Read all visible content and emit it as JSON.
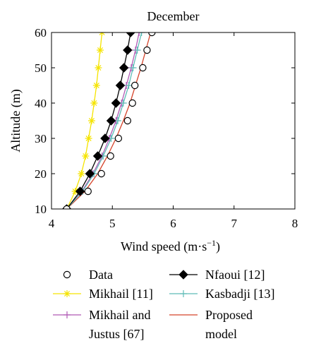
{
  "chart_data": {
    "type": "line",
    "title": "December",
    "xlabel": "Wind speed (m·s",
    "xlabel_sup": "−1",
    "xlabel_close": ")",
    "ylabel": "Altitude (m)",
    "xlim": [
      4,
      8
    ],
    "ylim": [
      10,
      60
    ],
    "xticks": [
      "4",
      "5",
      "6",
      "7",
      "8"
    ],
    "yticks": [
      "10",
      "20",
      "30",
      "40",
      "50",
      "60"
    ],
    "grid": false,
    "legend_position": "bottom",
    "y": [
      10,
      15,
      20,
      25,
      30,
      35,
      40,
      45,
      50,
      55,
      60
    ],
    "series": [
      {
        "name": "Data",
        "marker": "circle",
        "line": false,
        "color": "#000000",
        "x": [
          4.25,
          4.6,
          4.82,
          4.97,
          5.1,
          5.25,
          5.33,
          5.37,
          5.5,
          5.57,
          5.65
        ]
      },
      {
        "name": "Nfaoui [12]",
        "marker": "diamond",
        "line": true,
        "color": "#000000",
        "x": [
          4.25,
          4.47,
          4.63,
          4.76,
          4.88,
          4.98,
          5.06,
          5.13,
          5.19,
          5.25,
          5.3
        ]
      },
      {
        "name": "Mikhail [11]",
        "marker": "asterisk",
        "line": true,
        "color": "#f5e400",
        "x": [
          4.25,
          4.39,
          4.49,
          4.56,
          4.61,
          4.66,
          4.7,
          4.74,
          4.77,
          4.8,
          4.83
        ]
      },
      {
        "name": "Kasbadji [13]",
        "marker": "plus",
        "line": true,
        "color": "#5fbcb7",
        "x": [
          4.25,
          4.51,
          4.7,
          4.85,
          4.98,
          5.09,
          5.18,
          5.27,
          5.34,
          5.41,
          5.48
        ]
      },
      {
        "name": "Mikhail and Justus [67]",
        "legend_lines": [
          "Mikhail and",
          "Justus [67]"
        ],
        "marker": "plus",
        "line": true,
        "color": "#b05bb5",
        "x": [
          4.25,
          4.5,
          4.68,
          4.83,
          4.95,
          5.06,
          5.15,
          5.23,
          5.31,
          5.38,
          5.44
        ]
      },
      {
        "name": "Proposed model",
        "legend_lines": [
          "Proposed",
          "model"
        ],
        "marker": "none",
        "line": true,
        "color": "#d5432a",
        "x": [
          4.25,
          4.55,
          4.76,
          4.92,
          5.06,
          5.18,
          5.29,
          5.38,
          5.47,
          5.55,
          5.63
        ]
      }
    ]
  }
}
